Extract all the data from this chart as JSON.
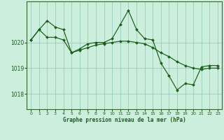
{
  "bg_color": "#cceedd",
  "grid_color": "#99ccbb",
  "line_color": "#1a5c1a",
  "xlabel": "Graphe pression niveau de la mer (hPa)",
  "ylim": [
    1017.4,
    1021.6
  ],
  "yticks": [
    1018,
    1019,
    1020
  ],
  "xlim": [
    -0.5,
    23.5
  ],
  "xticks": [
    0,
    1,
    2,
    3,
    4,
    5,
    6,
    7,
    8,
    9,
    10,
    11,
    12,
    13,
    14,
    15,
    16,
    17,
    18,
    19,
    20,
    21,
    22,
    23
  ],
  "series1": [
    1020.1,
    1020.5,
    1020.85,
    1020.6,
    1020.5,
    1019.6,
    1019.75,
    1019.95,
    1020.0,
    1020.0,
    1020.15,
    1020.7,
    1021.25,
    1020.5,
    1020.15,
    1020.1,
    1019.2,
    1018.7,
    1018.15,
    1018.4,
    1018.35,
    1019.05,
    1019.1,
    1019.1
  ],
  "series2": [
    1020.1,
    1020.5,
    1020.2,
    1020.2,
    1020.1,
    1019.6,
    1019.7,
    1019.8,
    1019.9,
    1019.95,
    1020.0,
    1020.05,
    1020.05,
    1020.0,
    1019.95,
    1019.8,
    1019.6,
    1019.45,
    1019.25,
    1019.1,
    1019.0,
    1018.95,
    1019.0,
    1019.0
  ]
}
